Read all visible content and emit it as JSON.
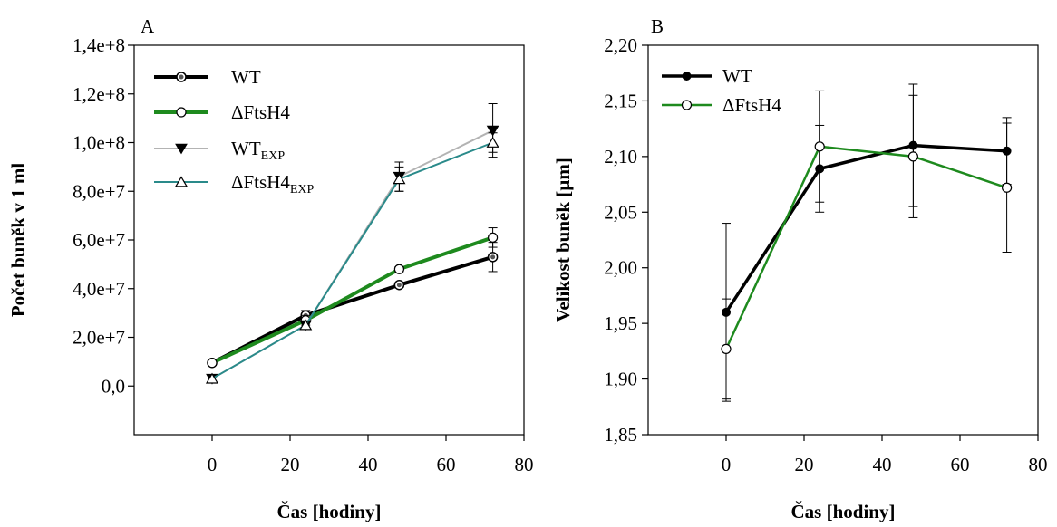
{
  "chart_data": [
    {
      "panel_label": "A",
      "type": "line",
      "xlabel": "Čas [hodiny]",
      "ylabel": "Počet buněk v 1 ml",
      "xlim": [
        -20,
        80
      ],
      "ylim": [
        -20000000.0,
        140000000.0
      ],
      "xticks": [
        0,
        20,
        40,
        60,
        80
      ],
      "xtick_labels": [
        "0",
        "20",
        "40",
        "60",
        "80"
      ],
      "yticks": [
        0,
        20000000.0,
        40000000.0,
        60000000.0,
        80000000.0,
        100000000.0,
        120000000.0,
        140000000.0
      ],
      "ytick_labels": [
        "0,0",
        "2,0e+7",
        "4,0e+7",
        "6,0e+7",
        "8,0e+7",
        "1,0e+8",
        "1,2e+8",
        "1,4e+8"
      ],
      "legend_position": "top-left",
      "series": [
        {
          "name": "WT",
          "name_sub": "",
          "color": "#000000",
          "width": 4,
          "marker": "circle-dot",
          "x": [
            0,
            24,
            48,
            72
          ],
          "y": [
            9500000.0,
            29000000.0,
            41500000.0,
            53000000.0
          ],
          "err": [
            1000000.0,
            2000000.0,
            1000000.0,
            6000000.0
          ]
        },
        {
          "name": "ΔFtsH4",
          "name_sub": "",
          "color": "#1e8a1e",
          "width": 4,
          "marker": "circle-open",
          "x": [
            0,
            24,
            48,
            72
          ],
          "y": [
            9500000.0,
            27000000.0,
            48000000.0,
            61000000.0
          ],
          "err": [
            1000000.0,
            2000000.0,
            1000000.0,
            4000000.0
          ]
        },
        {
          "name": "WT",
          "name_sub": "EXP",
          "color": "#b3b3b3",
          "width": 2,
          "marker": "triangle-down-filled",
          "x": [
            0,
            24,
            48,
            72
          ],
          "y": [
            3000000.0,
            25000000.0,
            86000000.0,
            105000000.0
          ],
          "err": [
            0,
            1500000.0,
            6000000.0,
            11000000.0
          ]
        },
        {
          "name": "ΔFtsH4",
          "name_sub": "EXP",
          "color": "#2a8a8a",
          "width": 2,
          "marker": "triangle-up-open",
          "x": [
            0,
            24,
            48,
            72
          ],
          "y": [
            3000000.0,
            25000000.0,
            85000000.0,
            100000000.0
          ],
          "err": [
            0,
            1500000.0,
            5000000.0,
            4000000.0
          ]
        }
      ]
    },
    {
      "panel_label": "B",
      "type": "line",
      "xlabel": "Čas [hodiny]",
      "ylabel": "Velikost buněk [µm]",
      "xlim": [
        -20,
        80
      ],
      "ylim": [
        1.85,
        2.2
      ],
      "xticks": [
        0,
        20,
        40,
        60,
        80
      ],
      "xtick_labels": [
        "0",
        "20",
        "40",
        "60",
        "80"
      ],
      "yticks": [
        1.85,
        1.9,
        1.95,
        2.0,
        2.05,
        2.1,
        2.15,
        2.2
      ],
      "ytick_labels": [
        "1,85",
        "1,90",
        "1,95",
        "2,00",
        "2,05",
        "2,10",
        "2,15",
        "2,20"
      ],
      "legend_position": "top-left",
      "series": [
        {
          "name": "WT",
          "name_sub": "",
          "color": "#000000",
          "width": 3.5,
          "marker": "circle-filled",
          "x": [
            0,
            24,
            48,
            72
          ],
          "y": [
            1.96,
            2.089,
            2.11,
            2.105
          ],
          "err": [
            0.08,
            0.039,
            0.055,
            0.03
          ]
        },
        {
          "name": "ΔFtsH4",
          "name_sub": "",
          "color": "#1e8a1e",
          "width": 2.5,
          "marker": "circle-open",
          "x": [
            0,
            24,
            48,
            72
          ],
          "y": [
            1.927,
            2.109,
            2.1,
            2.072
          ],
          "err": [
            0.045,
            0.05,
            0.055,
            0.058
          ]
        }
      ]
    }
  ]
}
